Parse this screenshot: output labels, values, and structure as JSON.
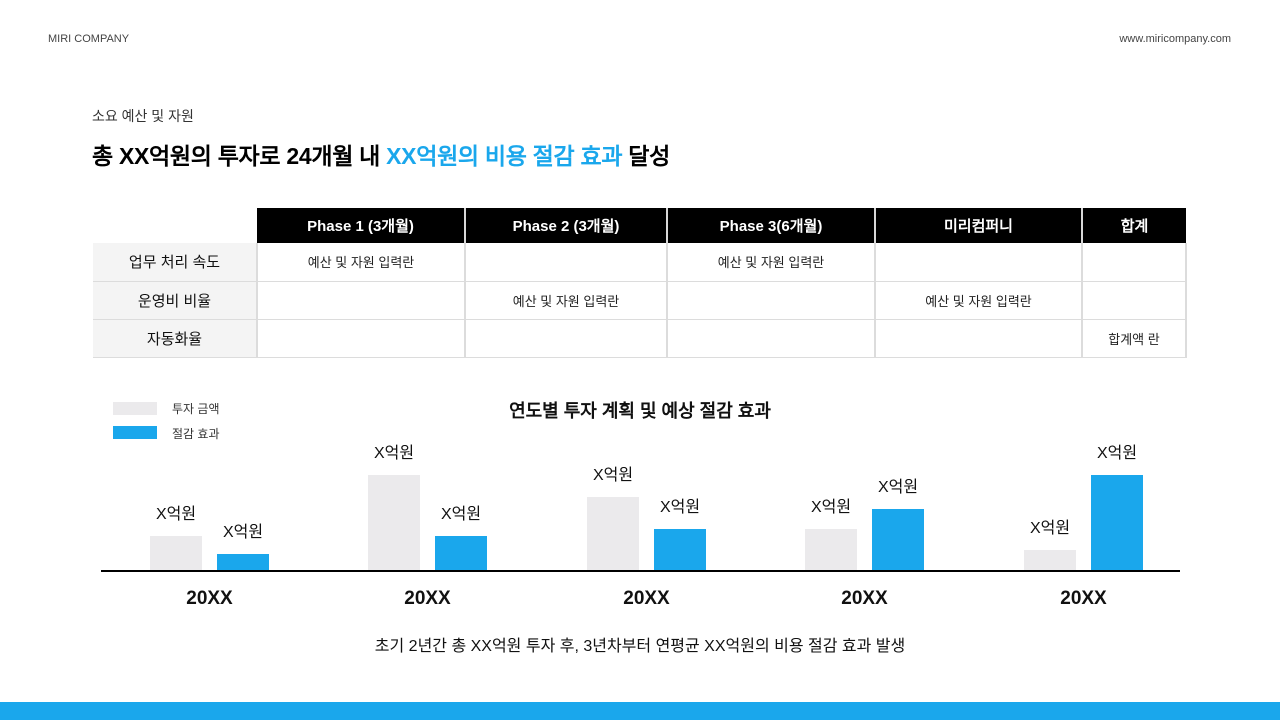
{
  "header": {
    "company": "MIRI COMPANY",
    "website": "www.miricompany.com"
  },
  "slide": {
    "subtitle": "소요 예산 및 자원",
    "title_part1": "총 XX억원의 투자로 24개월 내 ",
    "title_highlight": "XX억원의 비용 절감 효과",
    "title_part2": " 달성",
    "accent_color": "#1aa7ec"
  },
  "table": {
    "columns": [
      "Phase 1 (3개월)",
      "Phase 2 (3개월)",
      "Phase 3(6개월)",
      "미리컴퍼니",
      "합계"
    ],
    "rows": [
      {
        "label": "업무 처리 속도",
        "cells": [
          "예산 및 자원 입력란",
          "",
          "예산 및 자원 입력란",
          "",
          ""
        ]
      },
      {
        "label": "운영비 비율",
        "cells": [
          "",
          "예산 및 자원 입력란",
          "",
          "예산 및 자원 입력란",
          ""
        ]
      },
      {
        "label": "자동화율",
        "cells": [
          "",
          "",
          "",
          "",
          "합계액 란"
        ]
      }
    ]
  },
  "chart_data": {
    "type": "bar",
    "title": "연도별 투자 계획 및 예상 절감 효과",
    "categories": [
      "20XX",
      "20XX",
      "20XX",
      "20XX",
      "20XX"
    ],
    "series": [
      {
        "name": "투자 금액",
        "color": "#ebeaec",
        "values": [
          35,
          97,
          75,
          42,
          21
        ],
        "labels": [
          "X억원",
          "X억원",
          "X억원",
          "X억원",
          "X억원"
        ]
      },
      {
        "name": "절감 효과",
        "color": "#1aa7ec",
        "values": [
          17,
          35,
          42,
          63,
          97
        ],
        "labels": [
          "X억원",
          "X억원",
          "X억원",
          "X억원",
          "X억원"
        ]
      }
    ],
    "xlabel": "",
    "ylabel": "",
    "ylim": [
      0,
      100
    ],
    "grid": false,
    "legend_position": "top-left",
    "note": "bar values are relative heights in pixels-scale; actual labels are placeholder 'X억원'"
  },
  "legend": [
    {
      "label": "투자 금액",
      "color": "#ebeaec"
    },
    {
      "label": "절감 효과",
      "color": "#1aa7ec"
    }
  ],
  "footnote": "초기 2년간 총 XX억원 투자 후, 3년차부터 연평균 XX억원의 비용 절감 효과 발생"
}
